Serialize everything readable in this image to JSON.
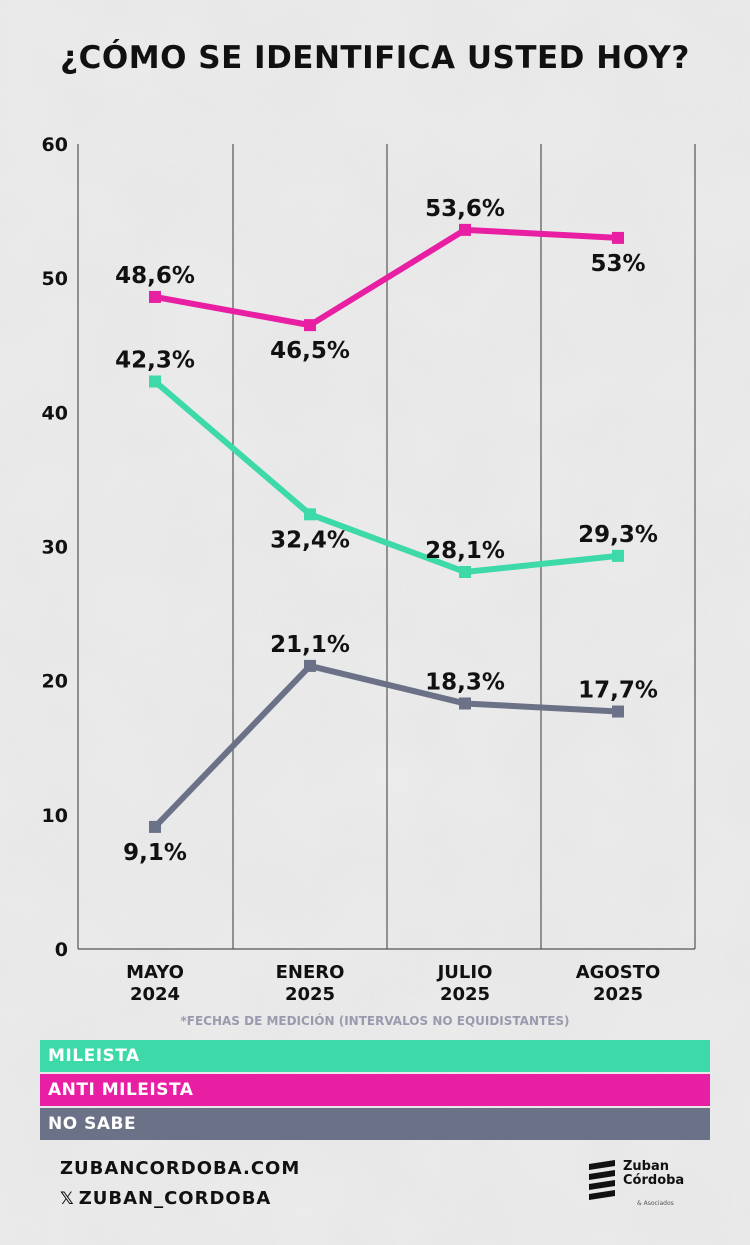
{
  "title": "¿CÓMO SE IDENTIFICA USTED HOY?",
  "note": "*FECHAS DE MEDICIÓN (INTERVALOS NO EQUIDISTANTES)",
  "legend": [
    {
      "label": "MILEISTA",
      "color": "#3dd9a9"
    },
    {
      "label": "ANTI MILEISTA",
      "color": "#e81fa3"
    },
    {
      "label": "NO SABE",
      "color": "#6b7287"
    }
  ],
  "footer": {
    "website": "ZUBANCORDOBA.COM",
    "social_icon": "x-icon",
    "social": "ZUBAN_CORDOBA"
  },
  "logo": {
    "line1": "Zuban",
    "line2": "Córdoba",
    "sub": "& Asociados"
  },
  "chart_data": {
    "type": "line",
    "title": "¿CÓMO SE IDENTIFICA USTED HOY?",
    "categories": [
      [
        "MAYO",
        "2024"
      ],
      [
        "ENERO",
        "2025"
      ],
      [
        "JULIO",
        "2025"
      ],
      [
        "AGOSTO",
        "2025"
      ]
    ],
    "ylim": [
      0,
      60
    ],
    "yticks": [
      "0",
      "10",
      "20",
      "30",
      "40",
      "50",
      "60"
    ],
    "grid": "vertical",
    "legend_position": "bottom",
    "series": [
      {
        "name": "MILEISTA",
        "color": "#3dd9a9",
        "values": [
          42.3,
          32.4,
          28.1,
          29.3
        ],
        "labels": [
          "42,3%",
          "32,4%",
          "28,1%",
          "29,3%"
        ],
        "label_side": [
          "above",
          "below",
          "above",
          "above"
        ]
      },
      {
        "name": "ANTI MILEISTA",
        "color": "#e81fa3",
        "values": [
          48.6,
          46.5,
          53.6,
          53.0
        ],
        "labels": [
          "48,6%",
          "46,5%",
          "53,6%",
          "53%"
        ],
        "label_side": [
          "above",
          "below",
          "above",
          "below"
        ]
      },
      {
        "name": "NO SABE",
        "color": "#6b7287",
        "values": [
          9.1,
          21.1,
          18.3,
          17.7
        ],
        "labels": [
          "9,1%",
          "21,1%",
          "18,3%",
          "17,7%"
        ],
        "label_side": [
          "below",
          "above",
          "above",
          "above"
        ]
      }
    ]
  }
}
